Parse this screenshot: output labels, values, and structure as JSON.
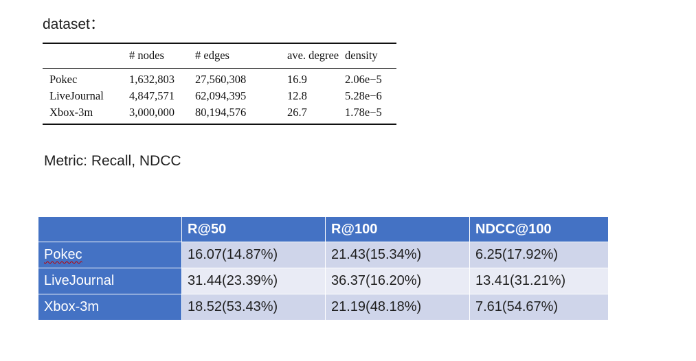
{
  "labels": {
    "dataset": "dataset：",
    "metric": "Metric: Recall, NDCC"
  },
  "stats_table": {
    "headers": [
      "",
      "# nodes",
      "# edges",
      "ave. degree",
      "density"
    ],
    "rows": [
      {
        "name": "Pokec",
        "nodes": "1,632,803",
        "edges": "27,560,308",
        "degree": "16.9",
        "density": "2.06e−5"
      },
      {
        "name": "LiveJournal",
        "nodes": "4,847,571",
        "edges": "62,094,395",
        "degree": "12.8",
        "density": "5.28e−6"
      },
      {
        "name": "Xbox-3m",
        "nodes": "3,000,000",
        "edges": "80,194,576",
        "degree": "26.7",
        "density": "1.78e−5"
      }
    ]
  },
  "results_table": {
    "headers": [
      "",
      "R@50",
      "R@100",
      "NDCC@100"
    ],
    "rows": [
      {
        "name": "Pokec",
        "r50": "16.07(14.87%)",
        "r100": "21.43(15.34%)",
        "ndcc100": "6.25(17.92%)"
      },
      {
        "name": "LiveJournal",
        "r50": "31.44(23.39%)",
        "r100": "36.37(16.20%)",
        "ndcc100": "13.41(31.21%)"
      },
      {
        "name": "Xbox-3m",
        "r50": "18.52(53.43%)",
        "r100": "21.19(48.18%)",
        "ndcc100": "7.61(54.67%)"
      }
    ],
    "colors": {
      "header": "#4472c4",
      "row_odd": "#cfd5ea",
      "row_even": "#e9ebf5",
      "spellcheck_underline": "#c00000"
    }
  }
}
